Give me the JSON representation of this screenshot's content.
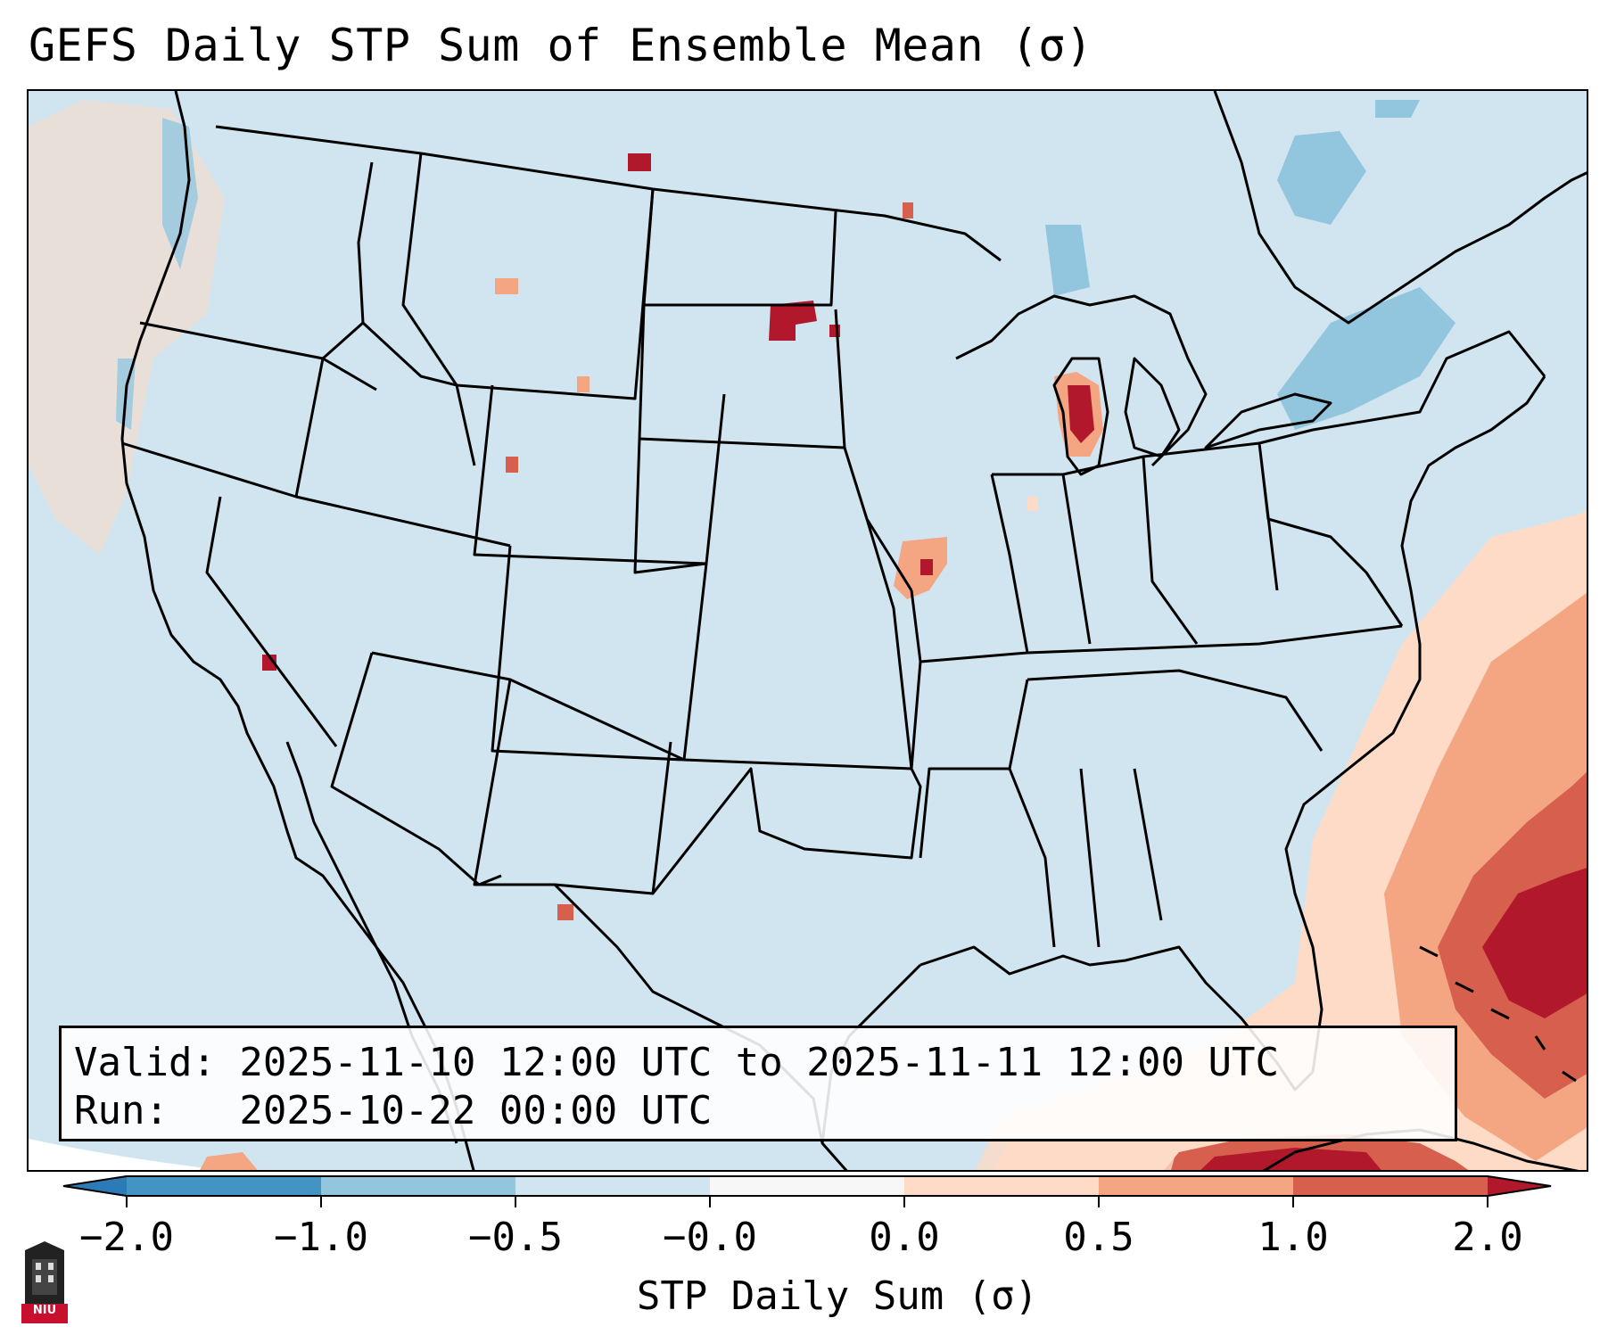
{
  "title": "GEFS Daily STP Sum of Ensemble Mean (σ)",
  "valid_box": {
    "valid_label": "Valid: 2025-11-10 12:00 UTC to 2025-11-11 12:00 UTC",
    "run_label": "Run:   2025-10-22 00:00 UTC"
  },
  "colorbar": {
    "title": "STP Daily Sum (σ)",
    "ticks": [
      "−2.0",
      "−1.0",
      "−0.5",
      "−0.0",
      "0.0",
      "0.5",
      "1.0",
      "2.0"
    ],
    "colors": [
      "#2c7bb6",
      "#4393c3",
      "#92c5de",
      "#d1e5f0",
      "#f7f7f7",
      "#fddbc7",
      "#f4a582",
      "#d6604d",
      "#b2182b"
    ],
    "extend": "both"
  },
  "map": {
    "projection": "Lambert Conformal, CONUS",
    "background_color": "#d1e5f0",
    "notable_features": [
      "High STP anomalies (1.0 to 2.0+) over western Atlantic east of Florida and the Bahamas",
      "Elevated STP along northern Cuba / Caribbean",
      "Localized high values near Lake Michigan, central Missouri, eastern South Dakota, northern Montana"
    ]
  },
  "logo": {
    "name": "NIU",
    "text": "NIU"
  }
}
